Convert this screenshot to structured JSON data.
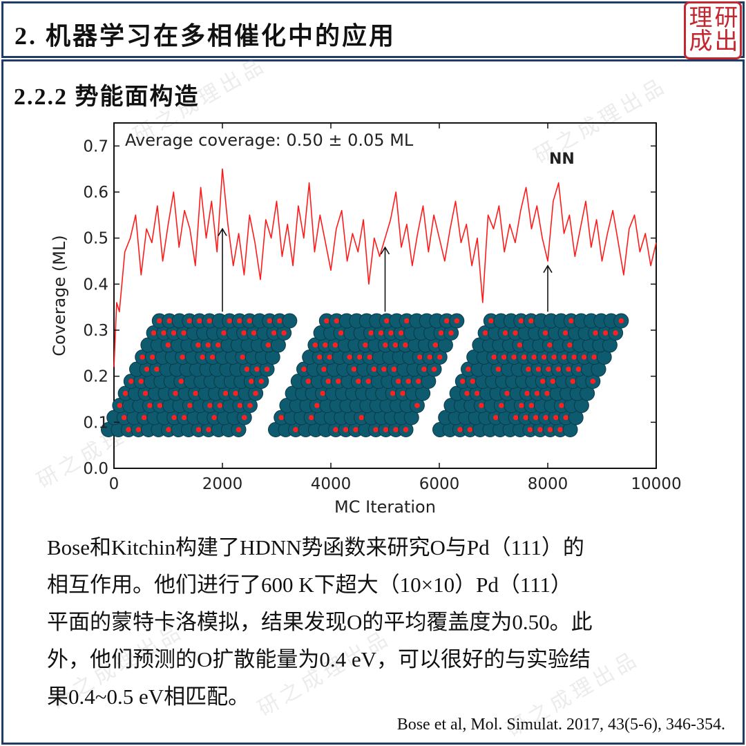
{
  "header": {
    "section_title": "2. 机器学习在多相催化中的应用",
    "seal_chars": [
      "成",
      "研",
      "理",
      "出"
    ]
  },
  "subsection_title": "2.2.2 势能面构造",
  "watermark": "研之成理出品",
  "chart_data": {
    "type": "line",
    "annotation": "Average coverage: 0.50 ± 0.05 ML",
    "xlabel": "MC Iteration",
    "ylabel": "Coverage (ML)",
    "xlim": [
      0,
      10000
    ],
    "ylim": [
      0,
      0.75
    ],
    "x_ticks": [
      0,
      2000,
      4000,
      6000,
      8000,
      10000
    ],
    "y_ticks": [
      0.0,
      0.1,
      0.2,
      0.3,
      0.4,
      0.5,
      0.6,
      0.7
    ],
    "x_tick_labels": [
      "0",
      "2000",
      "4000",
      "6000",
      "8000",
      "10000"
    ],
    "y_tick_labels": [
      "0.0",
      "0.1",
      "0.2",
      "0.3",
      "0.4",
      "0.5",
      "0.6",
      "0.7"
    ],
    "grid": false,
    "series": [
      {
        "name": "NN",
        "color": "#ff1a1a",
        "x": [
          0,
          50,
          100,
          200,
          300,
          400,
          500,
          600,
          700,
          800,
          900,
          1000,
          1100,
          1200,
          1300,
          1400,
          1500,
          1600,
          1700,
          1800,
          1900,
          2000,
          2100,
          2200,
          2300,
          2400,
          2500,
          2600,
          2700,
          2800,
          2900,
          3000,
          3100,
          3200,
          3300,
          3400,
          3500,
          3600,
          3700,
          3800,
          3900,
          4000,
          4100,
          4200,
          4300,
          4400,
          4500,
          4600,
          4700,
          4800,
          4900,
          5000,
          5100,
          5200,
          5300,
          5400,
          5500,
          5600,
          5700,
          5800,
          5900,
          6000,
          6100,
          6200,
          6300,
          6400,
          6500,
          6600,
          6700,
          6800,
          6900,
          7000,
          7100,
          7200,
          7300,
          7400,
          7500,
          7600,
          7700,
          7800,
          7900,
          8000,
          8100,
          8200,
          8300,
          8400,
          8500,
          8600,
          8700,
          8800,
          8900,
          9000,
          9100,
          9200,
          9300,
          9400,
          9500,
          9600,
          9700,
          9800,
          9900,
          10000
        ],
        "y": [
          0.22,
          0.36,
          0.34,
          0.47,
          0.5,
          0.55,
          0.42,
          0.52,
          0.49,
          0.57,
          0.45,
          0.53,
          0.6,
          0.48,
          0.56,
          0.52,
          0.44,
          0.61,
          0.5,
          0.58,
          0.47,
          0.65,
          0.53,
          0.44,
          0.51,
          0.42,
          0.55,
          0.49,
          0.41,
          0.54,
          0.5,
          0.58,
          0.46,
          0.53,
          0.44,
          0.57,
          0.5,
          0.62,
          0.47,
          0.55,
          0.49,
          0.43,
          0.52,
          0.56,
          0.45,
          0.51,
          0.47,
          0.54,
          0.4,
          0.5,
          0.46,
          0.5,
          0.54,
          0.6,
          0.48,
          0.53,
          0.44,
          0.51,
          0.57,
          0.47,
          0.55,
          0.5,
          0.45,
          0.52,
          0.58,
          0.49,
          0.53,
          0.44,
          0.5,
          0.36,
          0.55,
          0.52,
          0.57,
          0.47,
          0.53,
          0.49,
          0.56,
          0.61,
          0.52,
          0.57,
          0.5,
          0.45,
          0.58,
          0.62,
          0.51,
          0.55,
          0.46,
          0.52,
          0.58,
          0.48,
          0.54,
          0.45,
          0.51,
          0.56,
          0.49,
          0.42,
          0.52,
          0.55,
          0.47,
          0.51,
          0.44,
          0.49
        ]
      }
    ],
    "arrows": [
      {
        "x": 2000,
        "y_from": 0.34,
        "y_to": 0.52
      },
      {
        "x": 5000,
        "y_from": 0.34,
        "y_to": 0.48
      },
      {
        "x": 8000,
        "y_from": 0.34,
        "y_to": 0.44
      }
    ],
    "inset_colors": {
      "atom": "#0e5a6e",
      "atom_edge": "#083a47",
      "adsorbate": "#ff2020"
    }
  },
  "paragraph_lines": [
    "Bose和Kitchin构建了HDNN势函数来研究O与Pd（111）的",
    "相互作用。他们进行了600  K下超大（10×10）Pd（111）",
    "平面的蒙特卡洛模拟，结果发现O的平均覆盖度为0.50。此",
    "外，他们预测的O扩散能量为0.4  eV，可以很好的与实验结",
    "果0.4~0.5 eV相匹配。"
  ],
  "citation": "Bose et al, Mol. Simulat. 2017, 43(5-6), 346-354."
}
